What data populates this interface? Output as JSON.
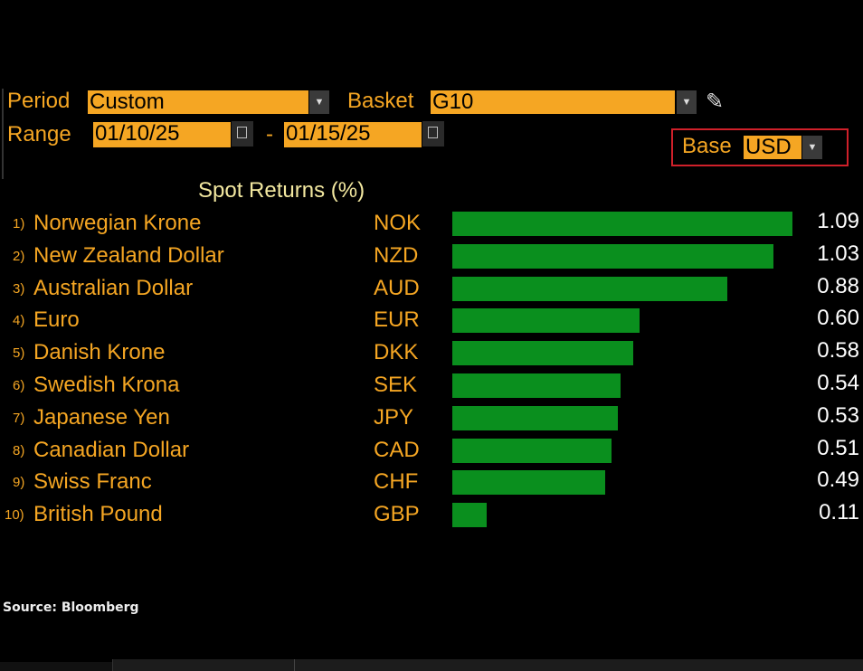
{
  "controls": {
    "period_label": "Period",
    "period_value": "Custom",
    "basket_label": "Basket",
    "basket_value": "G10",
    "range_label": "Range",
    "range_start": "01/10/25",
    "range_sep": "-",
    "range_end": "01/15/25",
    "base_label": "Base",
    "base_value": "USD"
  },
  "colors": {
    "accent": "#f5a623",
    "bar": "#0a8f1e",
    "highlight_box": "#d0202a"
  },
  "chart_data": {
    "type": "bar",
    "orientation": "horizontal",
    "title": "Spot Returns (%)",
    "rows": [
      {
        "rank": "1)",
        "name": "Norwegian Krone",
        "code": "NOK",
        "value": 1.09,
        "label": "1.09"
      },
      {
        "rank": "2)",
        "name": "New Zealand Dollar",
        "code": "NZD",
        "value": 1.03,
        "label": "1.03"
      },
      {
        "rank": "3)",
        "name": "Australian Dollar",
        "code": "AUD",
        "value": 0.88,
        "label": "0.88"
      },
      {
        "rank": "4)",
        "name": "Euro",
        "code": "EUR",
        "value": 0.6,
        "label": "0.60"
      },
      {
        "rank": "5)",
        "name": "Danish Krone",
        "code": "DKK",
        "value": 0.58,
        "label": "0.58"
      },
      {
        "rank": "6)",
        "name": "Swedish Krona",
        "code": "SEK",
        "value": 0.54,
        "label": "0.54"
      },
      {
        "rank": "7)",
        "name": "Japanese Yen",
        "code": "JPY",
        "value": 0.53,
        "label": "0.53"
      },
      {
        "rank": "8)",
        "name": "Canadian Dollar",
        "code": "CAD",
        "value": 0.51,
        "label": "0.51"
      },
      {
        "rank": "9)",
        "name": "Swiss Franc",
        "code": "CHF",
        "value": 0.49,
        "label": "0.49"
      },
      {
        "rank": "10)",
        "name": "British Pound",
        "code": "GBP",
        "value": 0.11,
        "label": "0.11"
      }
    ]
  },
  "footer": {
    "source": "Source: Bloomberg"
  }
}
